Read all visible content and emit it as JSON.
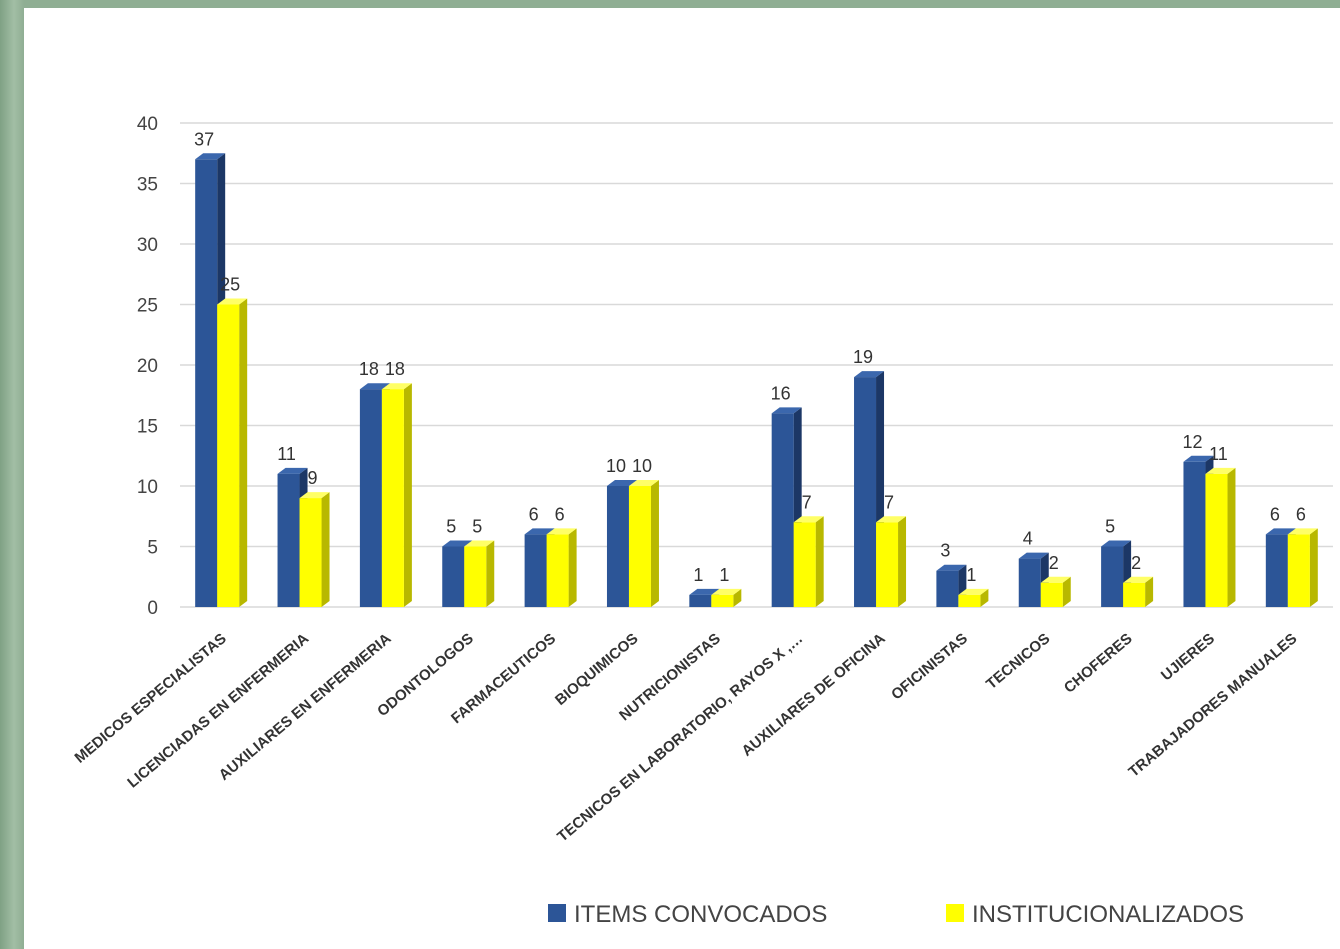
{
  "chart_data": {
    "type": "bar",
    "categories": [
      "MEDICOS ESPECIALISTAS",
      "LICENCIADAS EN ENFERMERIA",
      "AUXILIARES EN ENFERMERIA",
      "ODONTOLOGOS",
      "FARMACEUTICOS",
      "BIOQUIMICOS",
      "NUTRICIONISTAS",
      "TECNICOS EN LABORATORIO, RAYOS X ,…",
      "AUXILIARES DE OFICINA",
      "OFICINISTAS",
      "TECNICOS",
      "CHOFERES",
      "UJIERES",
      "TRABAJADORES MANUALES"
    ],
    "series": [
      {
        "name": "ITEMS CONVOCADOS",
        "color": "#2c5597",
        "values": [
          37,
          11,
          18,
          5,
          6,
          10,
          1,
          16,
          19,
          3,
          4,
          5,
          12,
          6
        ]
      },
      {
        "name": "INSTITUCIONALIZADOS",
        "color": "#ffff00",
        "values": [
          25,
          9,
          18,
          5,
          6,
          10,
          1,
          7,
          7,
          1,
          2,
          2,
          11,
          6
        ]
      }
    ],
    "ylim": [
      0,
      40
    ],
    "yticks": [
      0,
      5,
      10,
      15,
      20,
      25,
      30,
      35,
      40
    ],
    "grid": true,
    "legend": "bottom",
    "title": "",
    "xlabel": "",
    "ylabel": ""
  }
}
